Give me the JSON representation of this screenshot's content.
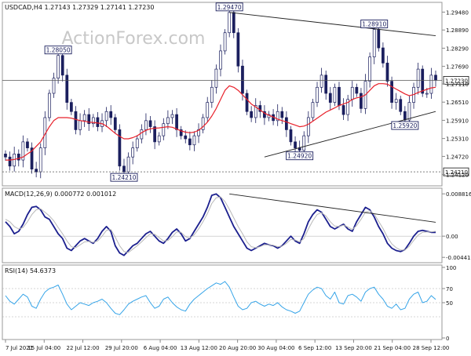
{
  "colors": {
    "candle": "#1b1f5e",
    "ma": "#e8202a",
    "macd": "#1b1f8e",
    "signal": "#b8b8b8",
    "rsi": "#35a4e8",
    "trendline": "#222222",
    "hline": "#555555",
    "watermark": "#c8c8c8"
  },
  "chart_data": [
    {
      "type": "candlestick",
      "title": "USDCAD,H4  1.27143 1.27329 1.27141 1.27230",
      "watermark": "ActionForex.com",
      "ylim": [
        1.238,
        1.2975
      ],
      "y_ticks": [
        "1.29480",
        "1.28890",
        "1.28290",
        "1.27690",
        "1.27110",
        "1.26510",
        "1.25910",
        "1.25310",
        "1.24720",
        "1.24120"
      ],
      "x_ticks": [
        "7 Jul 2021",
        "15 Jul 04:00",
        "22 Jul 12:00",
        "29 Jul 20:00",
        "6 Aug 04:00",
        "13 Aug 12:00",
        "20 Aug 20:00",
        "30 Aug 04:00",
        "6 Sep 12:00",
        "13 Sep 20:00",
        "21 Sep 04:00",
        "28 Sep 12:00"
      ],
      "price_series": [
        1.247,
        1.244,
        1.248,
        1.246,
        1.252,
        1.25,
        1.243,
        1.2421,
        1.25,
        1.26,
        1.268,
        1.273,
        1.2805,
        1.274,
        1.265,
        1.262,
        1.256,
        1.259,
        1.261,
        1.258,
        1.26,
        1.257,
        1.259,
        1.262,
        1.26,
        1.256,
        1.244,
        1.2421,
        1.247,
        1.25,
        1.253,
        1.256,
        1.259,
        1.257,
        1.252,
        1.254,
        1.258,
        1.26,
        1.261,
        1.256,
        1.254,
        1.253,
        1.251,
        1.254,
        1.256,
        1.26,
        1.265,
        1.27,
        1.276,
        1.282,
        1.288,
        1.2947,
        1.288,
        1.277,
        1.268,
        1.262,
        1.26,
        1.264,
        1.262,
        1.26,
        1.261,
        1.259,
        1.262,
        1.26,
        1.256,
        1.252,
        1.25,
        1.2492,
        1.254,
        1.26,
        1.265,
        1.27,
        1.274,
        1.268,
        1.265,
        1.27,
        1.264,
        1.261,
        1.266,
        1.27,
        1.268,
        1.263,
        1.272,
        1.28,
        1.2891,
        1.283,
        1.278,
        1.272,
        1.265,
        1.266,
        1.262,
        1.2592,
        1.265,
        1.27,
        1.276,
        1.268,
        1.268,
        1.274,
        1.2723
      ],
      "ma_series": [
        1.246,
        1.246,
        1.2462,
        1.2465,
        1.247,
        1.248,
        1.249,
        1.2505,
        1.252,
        1.2545,
        1.257,
        1.259,
        1.26,
        1.26,
        1.26,
        1.2598,
        1.2594,
        1.259,
        1.2588,
        1.2585,
        1.2584,
        1.2582,
        1.258,
        1.2572,
        1.256,
        1.2548,
        1.2538,
        1.253,
        1.253,
        1.2534,
        1.254,
        1.255,
        1.2558,
        1.2563,
        1.2565,
        1.2566,
        1.2568,
        1.257,
        1.2568,
        1.2562,
        1.2556,
        1.2552,
        1.255,
        1.2552,
        1.2558,
        1.257,
        1.2585,
        1.2605,
        1.263,
        1.266,
        1.269,
        1.2705,
        1.27,
        1.269,
        1.2675,
        1.266,
        1.2645,
        1.2635,
        1.2625,
        1.2615,
        1.2608,
        1.2602,
        1.2595,
        1.259,
        1.2586,
        1.258,
        1.2575,
        1.257,
        1.2572,
        1.2578,
        1.2588,
        1.2598,
        1.2608,
        1.2618,
        1.2625,
        1.2632,
        1.264,
        1.2645,
        1.265,
        1.266,
        1.2665,
        1.2668,
        1.2675,
        1.269,
        1.2705,
        1.2712,
        1.2712,
        1.271,
        1.2702,
        1.2694,
        1.2686,
        1.2678,
        1.2672,
        1.2676,
        1.2683,
        1.2688,
        1.2693,
        1.2698,
        1.27
      ],
      "annotations": [
        {
          "label": "1.28050",
          "index": 12,
          "value": 1.2805,
          "pos": "above"
        },
        {
          "label": "1.29470",
          "index": 51,
          "value": 1.2947,
          "pos": "above"
        },
        {
          "label": "1.28910",
          "index": 84,
          "value": 1.2891,
          "pos": "above"
        },
        {
          "label": "1.24210",
          "index": 27,
          "value": 1.2421,
          "pos": "below"
        },
        {
          "label": "1.24920",
          "index": 67,
          "value": 1.2492,
          "pos": "below"
        },
        {
          "label": "1.25920",
          "index": 91,
          "value": 1.2592,
          "pos": "below"
        }
      ],
      "trendlines": [
        {
          "from": [
            51,
            1.2947
          ],
          "to": [
            98,
            1.287
          ]
        },
        {
          "from": [
            59,
            1.247
          ],
          "to": [
            98,
            1.262
          ]
        }
      ],
      "horizontal_lines": [
        {
          "value": 1.2723,
          "label": "1.27230",
          "style": "solid"
        },
        {
          "value": 1.2421,
          "label": "1.24210",
          "style": "dashed"
        }
      ]
    },
    {
      "type": "line",
      "title": "MACD(12,26,9) 0.000772 0.001012",
      "ylim": [
        -0.0052,
        0.0095
      ],
      "y_ticks": [
        {
          "label": "0.008816",
          "value": 0.008816
        },
        {
          "label": "0.00",
          "value": 0.0
        },
        {
          "label": "-0.004416",
          "value": -0.004416
        }
      ],
      "series": [
        {
          "role": "macd",
          "values": [
            0.003,
            0.002,
            0.0005,
            0.001,
            0.0025,
            0.0045,
            0.006,
            0.0062,
            0.0055,
            0.004,
            0.0035,
            0.002,
            0.0005,
            -0.0005,
            -0.0025,
            -0.003,
            -0.002,
            -0.001,
            -0.0005,
            -0.001,
            -0.0015,
            -0.0005,
            0.001,
            0.002,
            0.001,
            -0.002,
            -0.0035,
            -0.004,
            -0.003,
            -0.002,
            -0.0015,
            -0.0005,
            0.0005,
            0.001,
            0.0,
            -0.001,
            -0.0015,
            -0.0005,
            0.0008,
            0.0015,
            0.0005,
            -0.001,
            -0.0005,
            0.001,
            0.0025,
            0.004,
            0.006,
            0.0085,
            0.0088,
            0.008,
            0.006,
            0.004,
            0.002,
            0.0005,
            -0.001,
            -0.0025,
            -0.003,
            -0.0025,
            -0.002,
            -0.0015,
            -0.0018,
            -0.002,
            -0.0025,
            -0.002,
            -0.001,
            0.0,
            -0.001,
            -0.0015,
            0.0005,
            0.003,
            0.0045,
            0.0055,
            0.005,
            0.0035,
            0.002,
            0.0015,
            0.002,
            0.0025,
            0.0015,
            0.001,
            0.003,
            0.0045,
            0.006,
            0.0055,
            0.004,
            0.002,
            0.0005,
            -0.0015,
            -0.0025,
            -0.003,
            -0.0032,
            -0.0028,
            -0.0015,
            0.0,
            0.001,
            0.0012,
            0.001,
            0.0008,
            0.0008
          ]
        },
        {
          "role": "signal",
          "values": [
            0.0035,
            0.003,
            0.002,
            0.0015,
            0.0018,
            0.003,
            0.0045,
            0.0055,
            0.0057,
            0.005,
            0.0042,
            0.0032,
            0.0018,
            0.0005,
            -0.001,
            -0.0022,
            -0.0024,
            -0.0018,
            -0.0012,
            -0.0011,
            -0.0013,
            -0.001,
            0.0,
            0.0012,
            0.0014,
            -0.0002,
            -0.002,
            -0.0032,
            -0.0034,
            -0.0027,
            -0.002,
            -0.0012,
            -0.0003,
            0.0005,
            0.0004,
            -0.0003,
            -0.001,
            -0.0009,
            -0.0001,
            0.0009,
            0.0008,
            -0.0001,
            -0.0004,
            0.0003,
            0.0015,
            0.003,
            0.0047,
            0.0068,
            0.008,
            0.0082,
            0.0072,
            0.0056,
            0.0038,
            0.002,
            0.0005,
            -0.0012,
            -0.0022,
            -0.0024,
            -0.0022,
            -0.0018,
            -0.0018,
            -0.0019,
            -0.0022,
            -0.0021,
            -0.0015,
            -0.0007,
            -0.0008,
            -0.0012,
            -0.0005,
            0.0015,
            0.0032,
            0.0045,
            0.0049,
            0.0042,
            0.003,
            0.0021,
            0.002,
            0.0023,
            0.0019,
            0.0014,
            0.0022,
            0.0035,
            0.005,
            0.0053,
            0.0046,
            0.0031,
            0.0016,
            -0.0002,
            -0.0016,
            -0.0024,
            -0.0029,
            -0.0029,
            -0.0021,
            -0.0009,
            0.0002,
            0.0008,
            0.0009,
            0.0009,
            0.001
          ]
        }
      ],
      "trendlines": [
        {
          "from": [
            51,
            0.0088
          ],
          "to": [
            98,
            0.0029
          ]
        }
      ]
    },
    {
      "type": "line",
      "title": "RSI(14) 54.6373",
      "ylim": [
        0,
        100
      ],
      "y_ticks": [
        {
          "label": "100",
          "value": 100
        },
        {
          "label": "70",
          "value": 70
        },
        {
          "label": "50",
          "value": 50
        },
        {
          "label": "0",
          "value": 0
        }
      ],
      "reference_lines": [
        70,
        50,
        30
      ],
      "series": [
        {
          "role": "rsi",
          "values": [
            60,
            52,
            48,
            55,
            62,
            58,
            45,
            42,
            55,
            65,
            70,
            72,
            75,
            62,
            48,
            40,
            45,
            50,
            48,
            46,
            50,
            52,
            55,
            50,
            42,
            35,
            33,
            40,
            48,
            52,
            55,
            58,
            60,
            50,
            42,
            45,
            55,
            58,
            50,
            44,
            40,
            38,
            48,
            55,
            60,
            65,
            70,
            74,
            78,
            76,
            80,
            72,
            58,
            45,
            40,
            42,
            50,
            52,
            48,
            45,
            48,
            46,
            50,
            44,
            40,
            38,
            35,
            38,
            50,
            62,
            68,
            72,
            70,
            60,
            55,
            65,
            50,
            48,
            60,
            62,
            58,
            52,
            65,
            70,
            72,
            62,
            55,
            45,
            42,
            48,
            40,
            42,
            55,
            62,
            65,
            50,
            52,
            60,
            54.6
          ]
        }
      ]
    }
  ]
}
